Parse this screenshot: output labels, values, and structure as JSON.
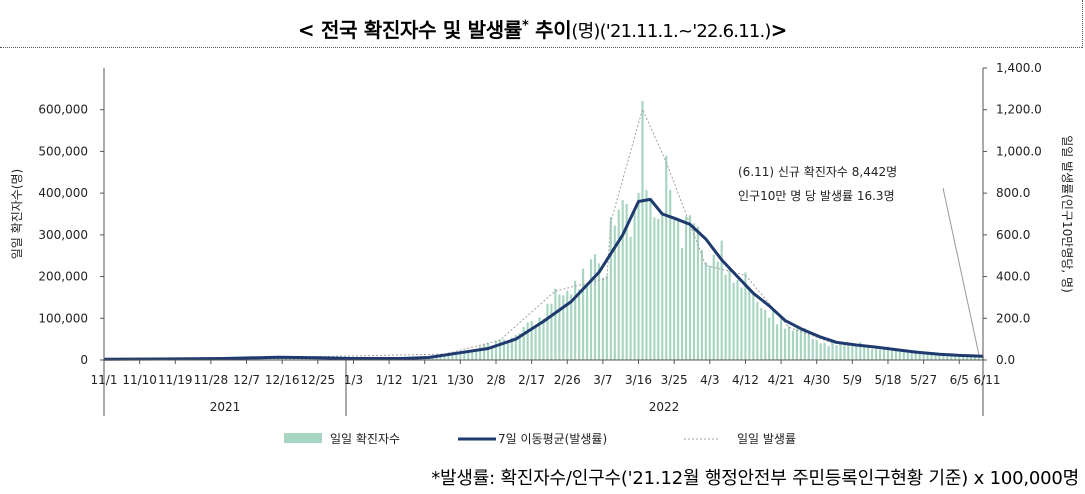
{
  "title": {
    "main": "< 전국 확진자수 및 발생률",
    "star": "*",
    "trend": "추이",
    "unit": "(명)",
    "period": "('21.11.1.~'22.6.11.)",
    "close": ">"
  },
  "footnote": "*발생률: 확진자수/인구수('21.12월 행정안전부 주민등록인구현황 기준) x 100,000명",
  "chart_data": {
    "type": "bar+line",
    "title": "< 전국 확진자수 및 발생률* 추이(명)('21.11.1.~'22.6.11.)>",
    "ylabel": "일일 확진자수(명)",
    "y2label": "일일 발생률(인구10만명당, 명)",
    "ylim": [
      0,
      700000
    ],
    "y2lim": [
      0,
      1400
    ],
    "yticks": [
      "0",
      "100,000",
      "200,000",
      "300,000",
      "400,000",
      "500,000",
      "600,000"
    ],
    "y2ticks": [
      "0.0",
      "200.0",
      "400.0",
      "600.0",
      "800.0",
      "1,000.0",
      "1,200.0",
      "1,400.0"
    ],
    "x_range": [
      "2021-11-01",
      "2022-06-11"
    ],
    "x_ticks": [
      "11/1",
      "11/10",
      "11/19",
      "11/28",
      "12/7",
      "12/16",
      "12/25",
      "1/3",
      "1/12",
      "1/21",
      "1/30",
      "2/8",
      "2/17",
      "2/26",
      "3/7",
      "3/16",
      "3/25",
      "4/3",
      "4/12",
      "4/21",
      "4/30",
      "5/9",
      "5/18",
      "5/27",
      "6/5",
      "6/11"
    ],
    "years": [
      "2021",
      "2022"
    ],
    "legend": [
      "일일 확진자수",
      "7일 이동평균(발생률)",
      "일일 발생률"
    ],
    "legend_position": "bottom",
    "annotation": {
      "line1": "(6.11) 신규 확진자수 8,442명",
      "line2": "인구10만 명 당 발생률 16.3명"
    },
    "colors": {
      "bars": "#a8d5c2",
      "ma_line": "#1f3a6e",
      "daily_line": "#a0a0a0"
    },
    "series": [
      {
        "name": "일일 확진자수",
        "type": "bar",
        "points": [
          [
            "2021-11-01",
            1700
          ],
          [
            "2021-11-15",
            2400
          ],
          [
            "2021-11-29",
            3500
          ],
          [
            "2021-12-13",
            6000
          ],
          [
            "2021-12-27",
            4000
          ],
          [
            "2022-01-10",
            3000
          ],
          [
            "2022-01-20",
            6000
          ],
          [
            "2022-01-26",
            14500
          ],
          [
            "2022-02-01",
            20000
          ],
          [
            "2022-02-05",
            38000
          ],
          [
            "2022-02-09",
            49000
          ],
          [
            "2022-02-12",
            54000
          ],
          [
            "2022-02-16",
            90000
          ],
          [
            "2022-02-19",
            102000
          ],
          [
            "2022-02-23",
            171000
          ],
          [
            "2022-02-26",
            166000
          ],
          [
            "2022-03-02",
            219000
          ],
          [
            "2022-03-05",
            254000
          ],
          [
            "2022-03-08",
            202000
          ],
          [
            "2022-03-09",
            342000
          ],
          [
            "2022-03-12",
            383000
          ],
          [
            "2022-03-15",
            362000
          ],
          [
            "2022-03-16",
            400000
          ],
          [
            "2022-03-17",
            621000
          ],
          [
            "2022-03-18",
            407000
          ],
          [
            "2022-03-19",
            381000
          ],
          [
            "2022-03-22",
            354000
          ],
          [
            "2022-03-23",
            490000
          ],
          [
            "2022-03-25",
            339000
          ],
          [
            "2022-03-29",
            347000
          ],
          [
            "2022-03-31",
            320000
          ],
          [
            "2022-04-02",
            234000
          ],
          [
            "2022-04-06",
            286000
          ],
          [
            "2022-04-09",
            185000
          ],
          [
            "2022-04-12",
            210000
          ],
          [
            "2022-04-16",
            125000
          ],
          [
            "2022-04-19",
            118000
          ],
          [
            "2022-04-23",
            81000
          ],
          [
            "2022-04-27",
            76000
          ],
          [
            "2022-05-01",
            40000
          ],
          [
            "2022-05-04",
            42000
          ],
          [
            "2022-05-07",
            40000
          ],
          [
            "2022-05-11",
            43000
          ],
          [
            "2022-05-15",
            30000
          ],
          [
            "2022-05-18",
            32000
          ],
          [
            "2022-05-22",
            20000
          ],
          [
            "2022-05-25",
            24000
          ],
          [
            "2022-05-29",
            15000
          ],
          [
            "2022-06-01",
            13000
          ],
          [
            "2022-06-05",
            9000
          ],
          [
            "2022-06-08",
            13000
          ],
          [
            "2022-06-11",
            8442
          ]
        ]
      },
      {
        "name": "7일 이동평균(발생률)",
        "type": "line",
        "axis": "right",
        "points": [
          [
            "2021-11-01",
            4.0
          ],
          [
            "2021-11-15",
            5.0
          ],
          [
            "2021-12-01",
            7.0
          ],
          [
            "2021-12-15",
            13.0
          ],
          [
            "2021-12-25",
            11.0
          ],
          [
            "2022-01-03",
            7.0
          ],
          [
            "2022-01-15",
            7.0
          ],
          [
            "2022-01-22",
            12.0
          ],
          [
            "2022-01-30",
            35.0
          ],
          [
            "2022-02-06",
            55.0
          ],
          [
            "2022-02-13",
            100.0
          ],
          [
            "2022-02-20",
            185.0
          ],
          [
            "2022-02-27",
            280.0
          ],
          [
            "2022-03-06",
            420.0
          ],
          [
            "2022-03-12",
            600.0
          ],
          [
            "2022-03-16",
            760.0
          ],
          [
            "2022-03-19",
            770.0
          ],
          [
            "2022-03-22",
            700.0
          ],
          [
            "2022-03-25",
            680.0
          ],
          [
            "2022-03-29",
            650.0
          ],
          [
            "2022-04-02",
            580.0
          ],
          [
            "2022-04-06",
            480.0
          ],
          [
            "2022-04-10",
            400.0
          ],
          [
            "2022-04-14",
            320.0
          ],
          [
            "2022-04-18",
            260.0
          ],
          [
            "2022-04-22",
            190.0
          ],
          [
            "2022-04-26",
            150.0
          ],
          [
            "2022-05-01",
            110.0
          ],
          [
            "2022-05-05",
            85.0
          ],
          [
            "2022-05-10",
            72.0
          ],
          [
            "2022-05-15",
            62.0
          ],
          [
            "2022-05-20",
            50.0
          ],
          [
            "2022-05-25",
            38.0
          ],
          [
            "2022-05-31",
            28.0
          ],
          [
            "2022-06-05",
            22.0
          ],
          [
            "2022-06-11",
            18.0
          ]
        ]
      },
      {
        "name": "일일 발생률",
        "type": "line",
        "axis": "right",
        "style": "dotted",
        "points": [
          [
            "2021-11-01",
            3.3
          ],
          [
            "2021-12-13",
            11.6
          ],
          [
            "2022-01-26",
            28.1
          ],
          [
            "2022-02-09",
            95.0
          ],
          [
            "2022-02-23",
            331.0
          ],
          [
            "2022-03-08",
            391.0
          ],
          [
            "2022-03-09",
            662.0
          ],
          [
            "2022-03-17",
            1202.0
          ],
          [
            "2022-03-23",
            949.0
          ],
          [
            "2022-04-02",
            453.0
          ],
          [
            "2022-04-12",
            407.0
          ],
          [
            "2022-04-23",
            157.0
          ],
          [
            "2022-05-04",
            81.0
          ],
          [
            "2022-05-15",
            58.0
          ],
          [
            "2022-05-29",
            29.0
          ],
          [
            "2022-06-11",
            16.3
          ]
        ]
      }
    ]
  }
}
